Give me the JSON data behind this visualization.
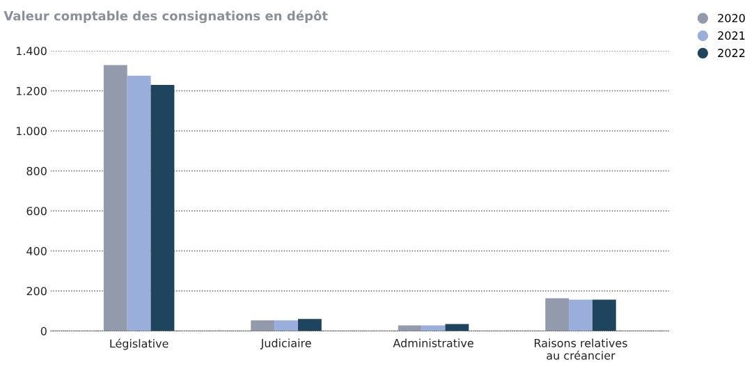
{
  "chart_data": {
    "type": "bar",
    "title": "Valeur comptable des consignations en dépôt",
    "categories": [
      "Législative",
      "Judiciaire",
      "Administrative",
      "Raisons relatives\nau créancier"
    ],
    "series": [
      {
        "name": "2020",
        "color": "#939aab",
        "values": [
          1329,
          53,
          28,
          163
        ]
      },
      {
        "name": "2021",
        "color": "#99aedb",
        "values": [
          1276,
          53,
          28,
          156
        ]
      },
      {
        "name": "2022",
        "color": "#1e445e",
        "values": [
          1230,
          60,
          35,
          156
        ]
      }
    ],
    "ylim": [
      0,
      1400
    ],
    "yticks": [
      0,
      200,
      400,
      600,
      800,
      {
        "value": 1000,
        "label": "1.000"
      },
      {
        "value": 1200,
        "label": "1.200"
      },
      {
        "value": 1400,
        "label": "1.400"
      }
    ],
    "grid": "y",
    "legend": "top right"
  }
}
